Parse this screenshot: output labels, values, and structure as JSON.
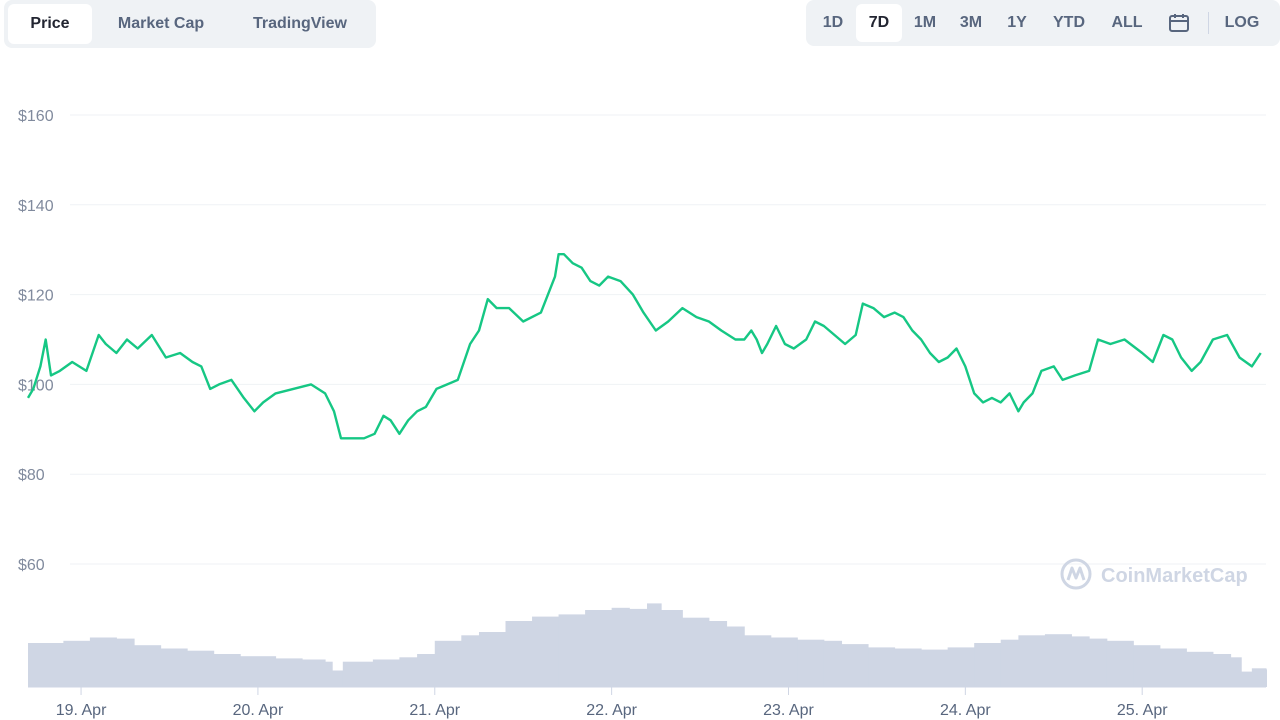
{
  "tabs_left": [
    "Price",
    "Market Cap",
    "TradingView"
  ],
  "tabs_left_active": 0,
  "tabs_right": [
    "1D",
    "7D",
    "1M",
    "3M",
    "1Y",
    "YTD",
    "ALL"
  ],
  "tabs_right_active": 1,
  "calendar_icon": "calendar-icon",
  "log_label": "LOG",
  "watermark": {
    "text": "CoinMarketCap",
    "icon": "coinmarketcap-logo-icon"
  },
  "colors": {
    "price_line": "#16c784",
    "volume": "#cfd6e4",
    "grid": "#eff2f5"
  },
  "chart_data": {
    "type": "line",
    "ylim": [
      40,
      170
    ],
    "yticks": [
      60,
      80,
      100,
      120,
      140,
      160
    ],
    "ytick_labels": [
      "$60",
      "$80",
      "$100",
      "$120",
      "$140",
      "$160"
    ],
    "xticks": [
      "19. Apr",
      "20. Apr",
      "21. Apr",
      "22. Apr",
      "23. Apr",
      "24. Apr",
      "25. Apr"
    ],
    "xtick_positions": [
      0.3,
      1.3,
      2.3,
      3.3,
      4.3,
      5.3,
      6.3
    ],
    "xlim": [
      0,
      7
    ],
    "series": [
      {
        "values": [
          [
            0.0,
            97
          ],
          [
            0.03,
            99
          ],
          [
            0.07,
            104
          ],
          [
            0.1,
            110
          ],
          [
            0.13,
            102
          ],
          [
            0.18,
            103
          ],
          [
            0.25,
            105
          ],
          [
            0.33,
            103
          ],
          [
            0.4,
            111
          ],
          [
            0.44,
            109
          ],
          [
            0.5,
            107
          ],
          [
            0.56,
            110
          ],
          [
            0.62,
            108
          ],
          [
            0.7,
            111
          ],
          [
            0.78,
            106
          ],
          [
            0.86,
            107
          ],
          [
            0.93,
            105
          ],
          [
            0.98,
            104
          ],
          [
            1.03,
            99
          ],
          [
            1.08,
            100
          ],
          [
            1.15,
            101
          ],
          [
            1.22,
            97
          ],
          [
            1.28,
            94
          ],
          [
            1.33,
            96
          ],
          [
            1.4,
            98
          ],
          [
            1.5,
            99
          ],
          [
            1.6,
            100
          ],
          [
            1.68,
            98
          ],
          [
            1.73,
            94
          ],
          [
            1.77,
            88
          ],
          [
            1.83,
            88
          ],
          [
            1.9,
            88
          ],
          [
            1.96,
            89
          ],
          [
            2.01,
            93
          ],
          [
            2.05,
            92
          ],
          [
            2.1,
            89
          ],
          [
            2.15,
            92
          ],
          [
            2.2,
            94
          ],
          [
            2.25,
            95
          ],
          [
            2.31,
            99
          ],
          [
            2.37,
            100
          ],
          [
            2.43,
            101
          ],
          [
            2.5,
            109
          ],
          [
            2.55,
            112
          ],
          [
            2.6,
            119
          ],
          [
            2.65,
            117
          ],
          [
            2.72,
            117
          ],
          [
            2.8,
            114
          ],
          [
            2.9,
            116
          ],
          [
            2.98,
            124
          ],
          [
            3.0,
            129
          ],
          [
            3.03,
            129
          ],
          [
            3.08,
            127
          ],
          [
            3.13,
            126
          ],
          [
            3.18,
            123
          ],
          [
            3.23,
            122
          ],
          [
            3.28,
            124
          ],
          [
            3.35,
            123
          ],
          [
            3.42,
            120
          ],
          [
            3.48,
            116
          ],
          [
            3.55,
            112
          ],
          [
            3.62,
            114
          ],
          [
            3.7,
            117
          ],
          [
            3.78,
            115
          ],
          [
            3.85,
            114
          ],
          [
            3.92,
            112
          ],
          [
            4.0,
            110
          ],
          [
            4.05,
            110
          ],
          [
            4.09,
            112
          ],
          [
            4.12,
            110
          ],
          [
            4.15,
            107
          ],
          [
            4.18,
            109
          ],
          [
            4.23,
            113
          ],
          [
            4.28,
            109
          ],
          [
            4.33,
            108
          ],
          [
            4.4,
            110
          ],
          [
            4.45,
            114
          ],
          [
            4.5,
            113
          ],
          [
            4.56,
            111
          ],
          [
            4.62,
            109
          ],
          [
            4.68,
            111
          ],
          [
            4.72,
            118
          ],
          [
            4.78,
            117
          ],
          [
            4.84,
            115
          ],
          [
            4.9,
            116
          ],
          [
            4.95,
            115
          ],
          [
            5.0,
            112
          ],
          [
            5.05,
            110
          ],
          [
            5.1,
            107
          ],
          [
            5.15,
            105
          ],
          [
            5.2,
            106
          ],
          [
            5.25,
            108
          ],
          [
            5.3,
            104
          ],
          [
            5.35,
            98
          ],
          [
            5.4,
            96
          ],
          [
            5.45,
            97
          ],
          [
            5.5,
            96
          ],
          [
            5.55,
            98
          ],
          [
            5.6,
            94
          ],
          [
            5.63,
            96
          ],
          [
            5.68,
            98
          ],
          [
            5.73,
            103
          ],
          [
            5.8,
            104
          ],
          [
            5.85,
            101
          ],
          [
            5.92,
            102
          ],
          [
            6.0,
            103
          ],
          [
            6.05,
            110
          ],
          [
            6.12,
            109
          ],
          [
            6.2,
            110
          ],
          [
            6.3,
            107
          ],
          [
            6.36,
            105
          ],
          [
            6.42,
            111
          ],
          [
            6.47,
            110
          ],
          [
            6.52,
            106
          ],
          [
            6.58,
            103
          ],
          [
            6.63,
            105
          ],
          [
            6.7,
            110
          ],
          [
            6.78,
            111
          ],
          [
            6.85,
            106
          ],
          [
            6.92,
            104
          ],
          [
            6.97,
            107
          ]
        ]
      }
    ],
    "volume": [
      [
        0.0,
        0.4
      ],
      [
        0.2,
        0.42
      ],
      [
        0.35,
        0.45
      ],
      [
        0.5,
        0.44
      ],
      [
        0.6,
        0.38
      ],
      [
        0.75,
        0.35
      ],
      [
        0.9,
        0.33
      ],
      [
        1.05,
        0.3
      ],
      [
        1.2,
        0.28
      ],
      [
        1.4,
        0.26
      ],
      [
        1.55,
        0.25
      ],
      [
        1.68,
        0.23
      ],
      [
        1.72,
        0.15
      ],
      [
        1.78,
        0.23
      ],
      [
        1.95,
        0.25
      ],
      [
        2.1,
        0.27
      ],
      [
        2.2,
        0.3
      ],
      [
        2.3,
        0.42
      ],
      [
        2.45,
        0.47
      ],
      [
        2.55,
        0.5
      ],
      [
        2.7,
        0.6
      ],
      [
        2.85,
        0.64
      ],
      [
        3.0,
        0.66
      ],
      [
        3.15,
        0.7
      ],
      [
        3.3,
        0.72
      ],
      [
        3.4,
        0.71
      ],
      [
        3.5,
        0.76
      ],
      [
        3.58,
        0.7
      ],
      [
        3.7,
        0.63
      ],
      [
        3.85,
        0.6
      ],
      [
        3.95,
        0.55
      ],
      [
        4.05,
        0.47
      ],
      [
        4.2,
        0.45
      ],
      [
        4.35,
        0.43
      ],
      [
        4.5,
        0.42
      ],
      [
        4.6,
        0.39
      ],
      [
        4.75,
        0.36
      ],
      [
        4.9,
        0.35
      ],
      [
        5.05,
        0.34
      ],
      [
        5.2,
        0.36
      ],
      [
        5.35,
        0.4
      ],
      [
        5.5,
        0.43
      ],
      [
        5.6,
        0.47
      ],
      [
        5.75,
        0.48
      ],
      [
        5.9,
        0.46
      ],
      [
        6.0,
        0.44
      ],
      [
        6.1,
        0.42
      ],
      [
        6.25,
        0.38
      ],
      [
        6.4,
        0.35
      ],
      [
        6.55,
        0.32
      ],
      [
        6.7,
        0.3
      ],
      [
        6.8,
        0.27
      ],
      [
        6.86,
        0.14
      ],
      [
        6.92,
        0.17
      ],
      [
        7.0,
        0.16
      ]
    ]
  }
}
